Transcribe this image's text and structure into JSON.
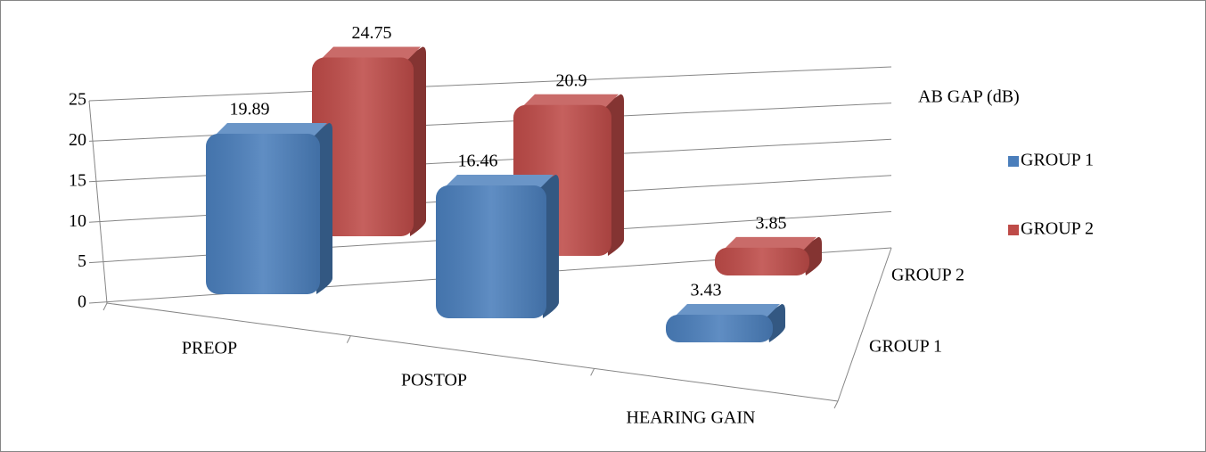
{
  "chart_data": {
    "type": "bar3d",
    "ylabel": "AB GAP (dB)",
    "categories": [
      "PREOP",
      "POSTOP",
      "HEARING GAIN"
    ],
    "series": [
      {
        "name": "GROUP 1",
        "color": "#4a7ebb",
        "values": [
          19.89,
          16.46,
          3.43
        ]
      },
      {
        "name": "GROUP 2",
        "color": "#be4b48",
        "values": [
          24.75,
          20.9,
          3.85
        ]
      }
    ],
    "ylim": [
      0,
      25
    ],
    "yticks": [
      0,
      5,
      10,
      15,
      20,
      25
    ],
    "grid": true,
    "legend": "right"
  }
}
